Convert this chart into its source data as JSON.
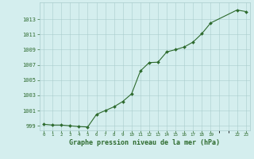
{
  "x": [
    0,
    1,
    2,
    3,
    4,
    5,
    6,
    7,
    8,
    9,
    10,
    11,
    12,
    13,
    14,
    15,
    16,
    17,
    18,
    19,
    22,
    23
  ],
  "y": [
    999.2,
    999.1,
    999.1,
    999.0,
    998.9,
    998.85,
    1000.5,
    1001.0,
    1001.5,
    1002.2,
    1003.2,
    1006.2,
    1007.3,
    1007.35,
    1008.7,
    1009.0,
    1009.35,
    1010.0,
    1011.1,
    1012.5,
    1014.2,
    1014.0
  ],
  "line_color": "#2d6a2d",
  "marker_color": "#2d6a2d",
  "bg_color": "#d4eeee",
  "grid_color": "#aacccc",
  "xlabel": "Graphe pression niveau de la mer (hPa)",
  "xlabel_color": "#2d6a2d",
  "ylabel_ticks": [
    999,
    1001,
    1003,
    1005,
    1007,
    1009,
    1011,
    1013
  ],
  "ylim": [
    998.4,
    1015.2
  ],
  "xlim": [
    -0.5,
    23.5
  ]
}
